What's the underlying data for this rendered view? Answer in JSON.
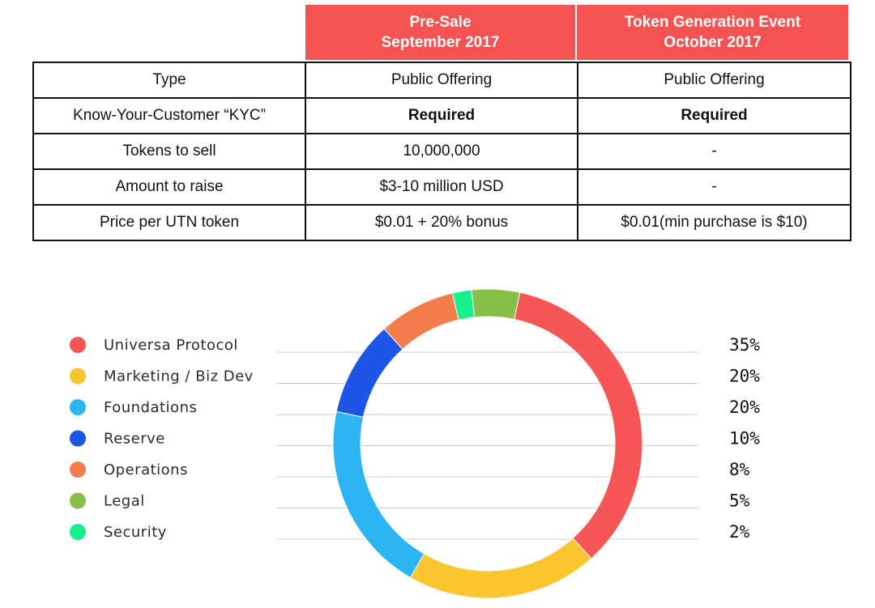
{
  "table": {
    "headers": [
      {
        "line1": "Pre-Sale",
        "line2": "September 2017"
      },
      {
        "line1": "Token Generation Event",
        "line2": "October 2017"
      }
    ],
    "rows": [
      {
        "label": "Type",
        "values": [
          "Public Offering",
          "Public Offering"
        ],
        "bold": false
      },
      {
        "label": "Know-Your-Customer “KYC”",
        "values": [
          "Required",
          "Required"
        ],
        "bold": true
      },
      {
        "label": "Tokens to sell",
        "values": [
          "10,000,000",
          "-"
        ],
        "bold": false
      },
      {
        "label": "Amount to raise",
        "values": [
          "$3-10 million USD",
          "-"
        ],
        "bold": false
      },
      {
        "label": "Price per UTN token",
        "values": [
          "$0.01 + 20% bonus",
          "$0.01(min purchase is $10)"
        ],
        "bold": false
      }
    ],
    "header_color": "#f55252"
  },
  "chart_data": {
    "type": "pie",
    "donut": true,
    "legend_placement": "left",
    "categories": [
      "Universa Protocol",
      "Marketing / Biz Dev",
      "Foundations",
      "Reserve",
      "Operations",
      "Legal",
      "Security"
    ],
    "values": [
      35,
      20,
      20,
      10,
      8,
      5,
      2
    ],
    "value_labels": [
      "35%",
      "20%",
      "20%",
      "10%",
      "8%",
      "5%",
      "2%"
    ],
    "colors": [
      "#f75656",
      "#fbc52d",
      "#2cb4f3",
      "#1d55e6",
      "#f57c4c",
      "#86bf48",
      "#17f08d"
    ]
  }
}
